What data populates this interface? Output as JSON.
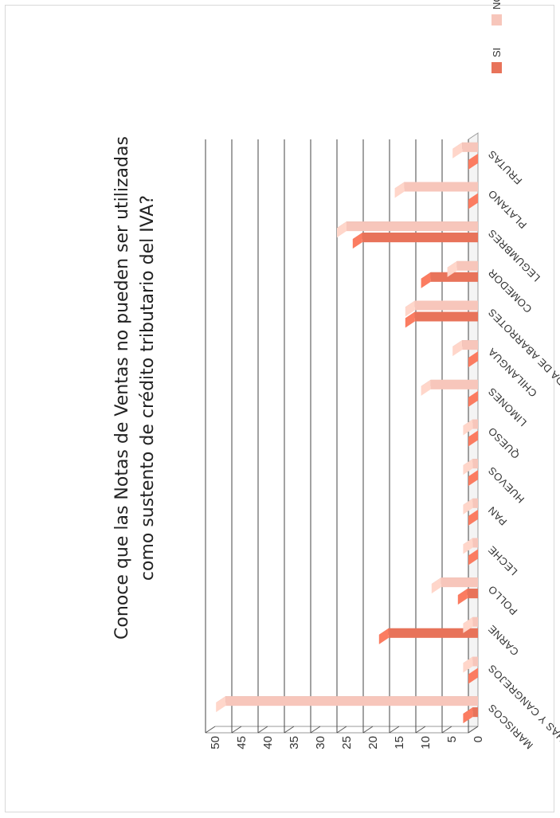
{
  "chart_data": {
    "type": "bar",
    "title": "Conoce que las Notas de Ventas no pueden ser utilizadas como sustento de crédito tributario del IVA?",
    "title_lines": [
      "Conoce que las Notas de Ventas no pueden ser utilizadas",
      "como sustento de crédito tributario del IVA?"
    ],
    "categories": [
      "MARISCOS",
      "CONCHAS Y CANGREJOS",
      "CARNE",
      "POLLO",
      "LECHE",
      "PAN",
      "HUEVOS",
      "QUESO",
      "LIMONES",
      "CHILANGUA",
      "TIENDA DE ABARROTES",
      "COMEDOR",
      "LEGUMBRES",
      "PLATANO",
      "FRUTAS"
    ],
    "series": [
      {
        "name": "SI",
        "color": "#e8735a",
        "values": [
          1,
          0,
          17,
          2,
          0,
          0,
          0,
          0,
          0,
          0,
          12,
          9,
          22,
          0,
          0
        ]
      },
      {
        "name": "NO",
        "color": "#f7c6bb",
        "values": [
          48,
          1,
          1,
          7,
          1,
          1,
          1,
          1,
          9,
          3,
          12,
          4,
          25,
          14,
          3
        ]
      }
    ],
    "ticks": [
      "0",
      "5",
      "10",
      "15",
      "20",
      "25",
      "30",
      "35",
      "40",
      "45",
      "50"
    ],
    "ylim": [
      0,
      50
    ],
    "grid": true,
    "legend": "top-right"
  }
}
